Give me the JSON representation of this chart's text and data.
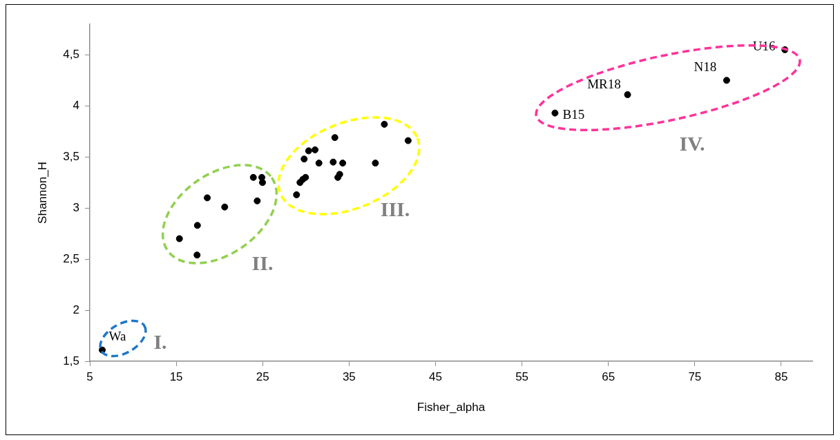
{
  "chart_data": {
    "type": "scatter",
    "xlabel": "Fisher_alpha",
    "ylabel": "Shannon_H",
    "marker": "circle",
    "grid": false,
    "legend": false,
    "xlim": [
      5,
      88.6
    ],
    "xticks": [
      5,
      15,
      25,
      35,
      45,
      55,
      65,
      75,
      85
    ],
    "ylim": [
      1.5,
      4.8
    ],
    "yticks": [
      {
        "value": 1.5,
        "label": "1,5"
      },
      {
        "value": 2,
        "label": "2"
      },
      {
        "value": 2.5,
        "label": "2,5"
      },
      {
        "value": 3,
        "label": "3"
      },
      {
        "value": 3.5,
        "label": "3,5"
      },
      {
        "value": 4,
        "label": "4"
      },
      {
        "value": 4.5,
        "label": "4,5"
      }
    ],
    "series": [
      {
        "color": "#000000",
        "x": [
          6.44,
          23.92,
          24.9,
          24.98,
          18.59,
          24.37,
          20.61,
          17.45,
          15.37,
          17.41,
          39.08,
          41.83,
          33.35,
          30.32,
          31.06,
          29.8,
          31.51,
          33.16,
          34.26,
          38.04,
          29.96,
          29.32,
          29.64,
          33.91,
          33.7,
          28.92,
          85.42,
          78.68,
          67.22,
          58.82
        ],
        "values": [
          1.61,
          3.3,
          3.3,
          3.25,
          3.1,
          3.07,
          3.01,
          2.83,
          2.7,
          2.54,
          3.82,
          3.66,
          3.69,
          3.56,
          3.57,
          3.48,
          3.44,
          3.45,
          3.44,
          3.44,
          3.3,
          3.25,
          3.28,
          3.33,
          3.3,
          3.13,
          4.55,
          4.25,
          4.11,
          3.93
        ]
      }
    ],
    "annotations": [
      {
        "text": "Wa",
        "x": 6.44,
        "y": 1.61
      },
      {
        "text": "B15",
        "x": 58.82,
        "y": 3.93
      },
      {
        "text": "MR18",
        "x": 67.22,
        "y": 4.11
      },
      {
        "text": "N18",
        "x": 78.68,
        "y": 4.25
      },
      {
        "text": "U16",
        "x": 85.42,
        "y": 4.55
      },
      "I.",
      "II.",
      "III.",
      "IV."
    ]
  }
}
